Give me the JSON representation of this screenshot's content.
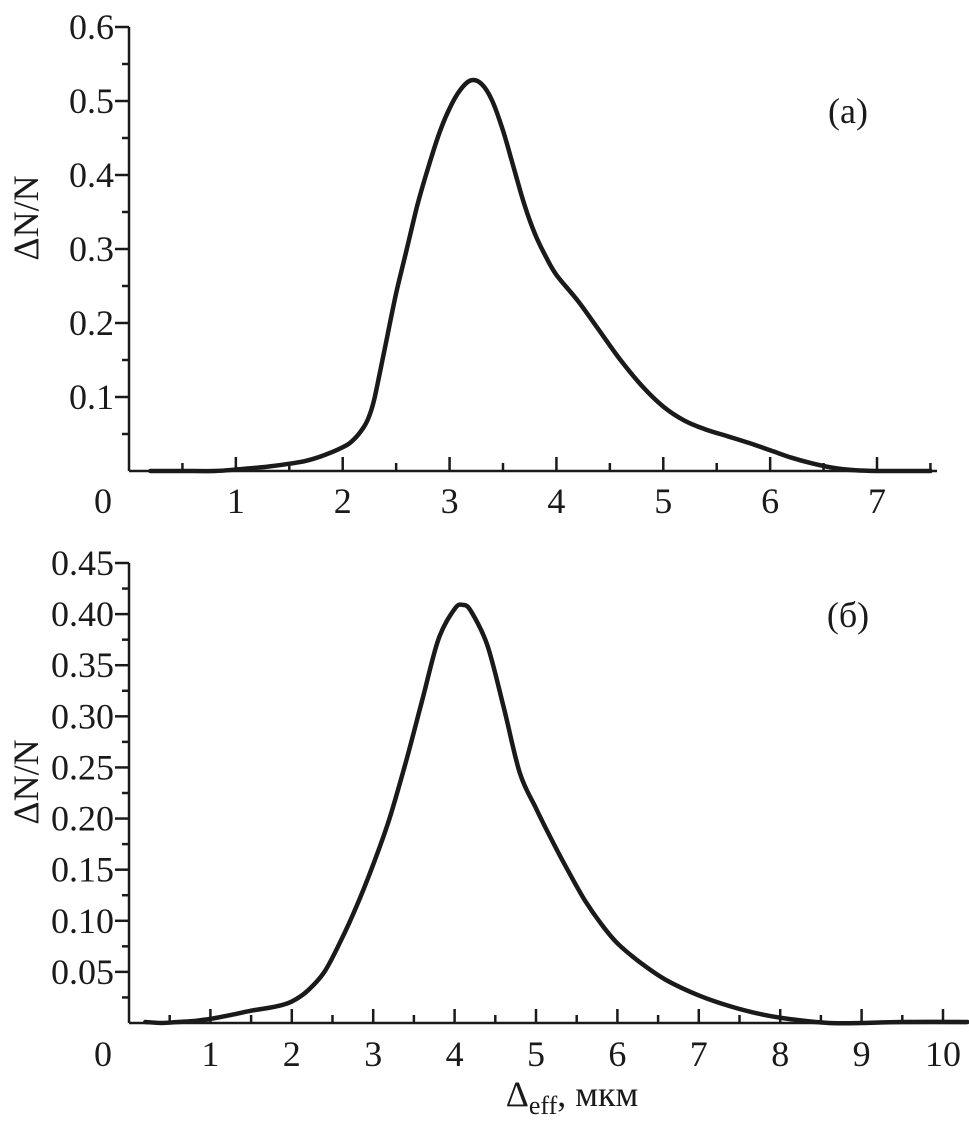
{
  "chart_data": [
    {
      "type": "line",
      "panel_label": "(a)",
      "title": "",
      "xlabel": "",
      "ylabel": "ΔN/N",
      "xlim": [
        0,
        7.5
      ],
      "ylim": [
        0,
        0.6
      ],
      "x_ticks": [
        0,
        1,
        2,
        3,
        4,
        5,
        6,
        7
      ],
      "x_tick_labels": [
        "0",
        "1",
        "2",
        "3",
        "4",
        "5",
        "6",
        "7"
      ],
      "y_ticks": [
        0.1,
        0.2,
        0.3,
        0.4,
        0.5,
        0.6
      ],
      "y_tick_labels": [
        "0.1",
        "0.2",
        "0.3",
        "0.4",
        "0.5",
        "0.6"
      ],
      "grid": false,
      "series": [
        {
          "x": [
            0.2,
            0.5,
            0.8,
            1.0,
            1.3,
            1.6,
            1.8,
            2.0,
            2.1,
            2.2,
            2.25,
            2.3,
            2.4,
            2.5,
            2.6,
            2.7,
            2.8,
            2.9,
            3.0,
            3.1,
            3.2,
            3.3,
            3.4,
            3.5,
            3.6,
            3.7,
            3.8,
            3.9,
            4.0,
            4.2,
            4.4,
            4.6,
            4.8,
            5.0,
            5.2,
            5.4,
            5.6,
            5.8,
            6.0,
            6.2,
            6.4,
            6.6,
            6.8,
            7.0,
            7.2,
            7.5
          ],
          "y": [
            0.0,
            0.0,
            0.0,
            0.002,
            0.006,
            0.012,
            0.02,
            0.032,
            0.042,
            0.06,
            0.075,
            0.1,
            0.17,
            0.24,
            0.3,
            0.36,
            0.41,
            0.455,
            0.49,
            0.515,
            0.528,
            0.523,
            0.5,
            0.46,
            0.41,
            0.36,
            0.32,
            0.29,
            0.265,
            0.23,
            0.19,
            0.15,
            0.115,
            0.087,
            0.068,
            0.056,
            0.047,
            0.038,
            0.028,
            0.018,
            0.01,
            0.004,
            0.001,
            0.0,
            0.0,
            0.0
          ]
        }
      ]
    },
    {
      "type": "line",
      "panel_label": "(б)",
      "title": "",
      "xlabel": "Δeff, мкм",
      "xlabel_main": "Δ",
      "xlabel_sub": "eff",
      "xlabel_rest": ", мкм",
      "ylabel": "ΔN/N",
      "xlim": [
        0,
        10.3
      ],
      "ylim": [
        0,
        0.45
      ],
      "x_ticks": [
        0,
        1,
        2,
        3,
        4,
        5,
        6,
        7,
        8,
        9,
        10
      ],
      "x_tick_labels": [
        "0",
        "1",
        "2",
        "3",
        "4",
        "5",
        "6",
        "7",
        "8",
        "9",
        "10"
      ],
      "y_ticks": [
        0.05,
        0.1,
        0.15,
        0.2,
        0.25,
        0.3,
        0.35,
        0.4,
        0.45
      ],
      "y_tick_labels": [
        "0.05",
        "0.10",
        "0.15",
        "0.20",
        "0.25",
        "0.30",
        "0.35",
        "0.40",
        "0.45"
      ],
      "grid": false,
      "series": [
        {
          "x": [
            0.2,
            0.4,
            0.6,
            0.8,
            1.0,
            1.2,
            1.5,
            1.8,
            2.0,
            2.2,
            2.4,
            2.6,
            2.8,
            3.0,
            3.2,
            3.4,
            3.6,
            3.8,
            4.0,
            4.1,
            4.2,
            4.4,
            4.6,
            4.8,
            5.0,
            5.2,
            5.4,
            5.6,
            5.8,
            6.0,
            6.3,
            6.6,
            7.0,
            7.4,
            7.8,
            8.2,
            8.6,
            9.0,
            9.5,
            10.3
          ],
          "y": [
            0.001,
            0.0,
            0.001,
            0.002,
            0.004,
            0.007,
            0.012,
            0.016,
            0.021,
            0.032,
            0.05,
            0.08,
            0.115,
            0.155,
            0.2,
            0.255,
            0.315,
            0.375,
            0.405,
            0.409,
            0.403,
            0.37,
            0.31,
            0.245,
            0.21,
            0.178,
            0.148,
            0.12,
            0.097,
            0.078,
            0.058,
            0.042,
            0.027,
            0.016,
            0.008,
            0.003,
            0.0,
            0.0,
            0.001,
            0.001
          ]
        }
      ]
    }
  ]
}
